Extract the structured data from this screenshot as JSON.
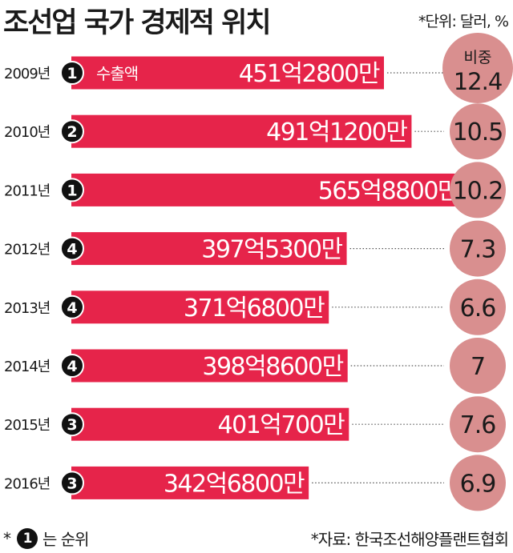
{
  "header": {
    "title": "조선업 국가 경제적 위치",
    "unit": "*단위: 달러, %"
  },
  "legend": {
    "export_label": "수출액",
    "share_label": "비중"
  },
  "footer": {
    "rank_prefix": "*",
    "rank_sample": "1",
    "rank_suffix": "는 순위",
    "source": "*자료: 한국조선해양플랜트협회"
  },
  "colors": {
    "bar": "#e6244a",
    "bubble": "#d98f8f",
    "rank_circle": "#111111"
  },
  "chart_data": {
    "type": "bar",
    "orientation": "horizontal",
    "categories": [
      "2009년",
      "2010년",
      "2011년",
      "2012년",
      "2013년",
      "2014년",
      "2015년",
      "2016년"
    ],
    "ranks": [
      "1",
      "2",
      "1",
      "4",
      "4",
      "4",
      "3",
      "3"
    ],
    "values": [
      45128000000,
      49112000000,
      56588000000,
      39753000000,
      37168000000,
      39886000000,
      40070000000,
      34268000000
    ],
    "value_labels": [
      "451억2800만",
      "491억1200만",
      "565억8800만",
      "397억5300만",
      "371억6800만",
      "398억8600만",
      "401억700만",
      "342억6800만"
    ],
    "shares": [
      12.4,
      10.5,
      10.2,
      7.3,
      6.6,
      7,
      7.6,
      6.9
    ],
    "share_labels": [
      "12.4",
      "10.5",
      "10.2",
      "7.3",
      "6.6",
      "7",
      "7.6",
      "6.9"
    ]
  }
}
